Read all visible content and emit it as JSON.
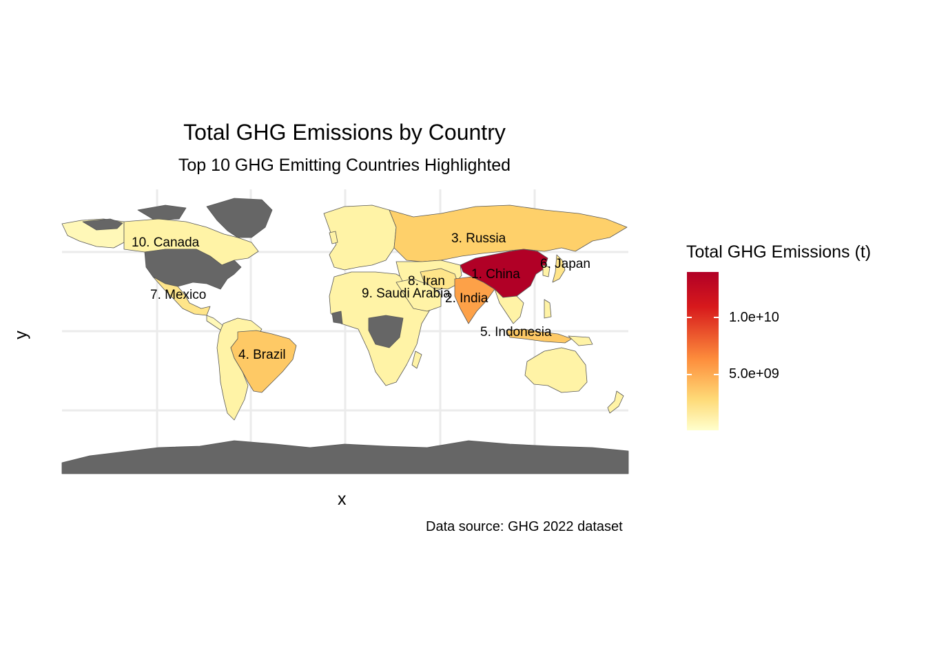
{
  "title": "Total GHG Emissions by Country",
  "subtitle": "Top 10 GHG Emitting Countries Highlighted",
  "axes": {
    "x_label": "x",
    "y_label": "y"
  },
  "caption": "Data source: GHG 2022 dataset",
  "legend": {
    "title": "Total GHG Emissions (t)",
    "labels": [
      "1.0e+10",
      "5.0e+09"
    ],
    "colors": {
      "high": "#b10026",
      "mid": "#fd8d3c",
      "low": "#ffffcc",
      "no_data": "#666666"
    }
  },
  "map_labels": [
    "1. China",
    "2. India",
    "3. Russia",
    "4. Brazil",
    "5. Indonesia",
    "6. Japan",
    "7. Mexico",
    "8. Iran",
    "9. Saudi Arabia",
    "10. Canada"
  ]
}
